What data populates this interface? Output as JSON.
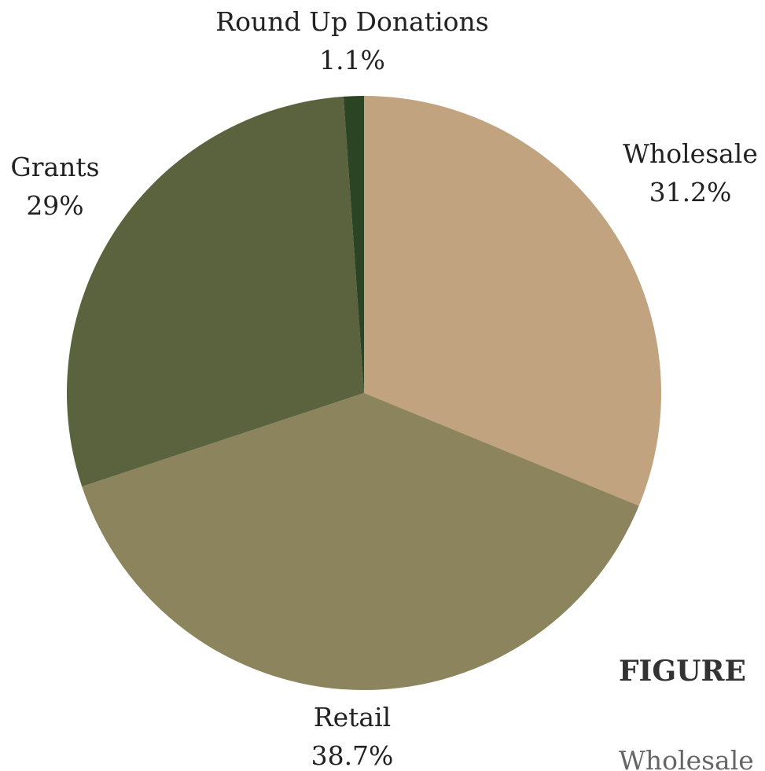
{
  "chart_data": {
    "type": "pie",
    "categories": [
      "Wholesale",
      "Retail",
      "Grants",
      "Round Up Donations"
    ],
    "values": [
      31.2,
      38.7,
      29,
      1.1
    ],
    "value_labels": [
      "31.2%",
      "38.7%",
      "29%",
      "1.1%"
    ],
    "colors": [
      "#c1a47f",
      "#8b845d",
      "#5a623e",
      "#2a4424"
    ]
  },
  "figure_heading": "FIGURE",
  "figure_text": "Wholesale"
}
